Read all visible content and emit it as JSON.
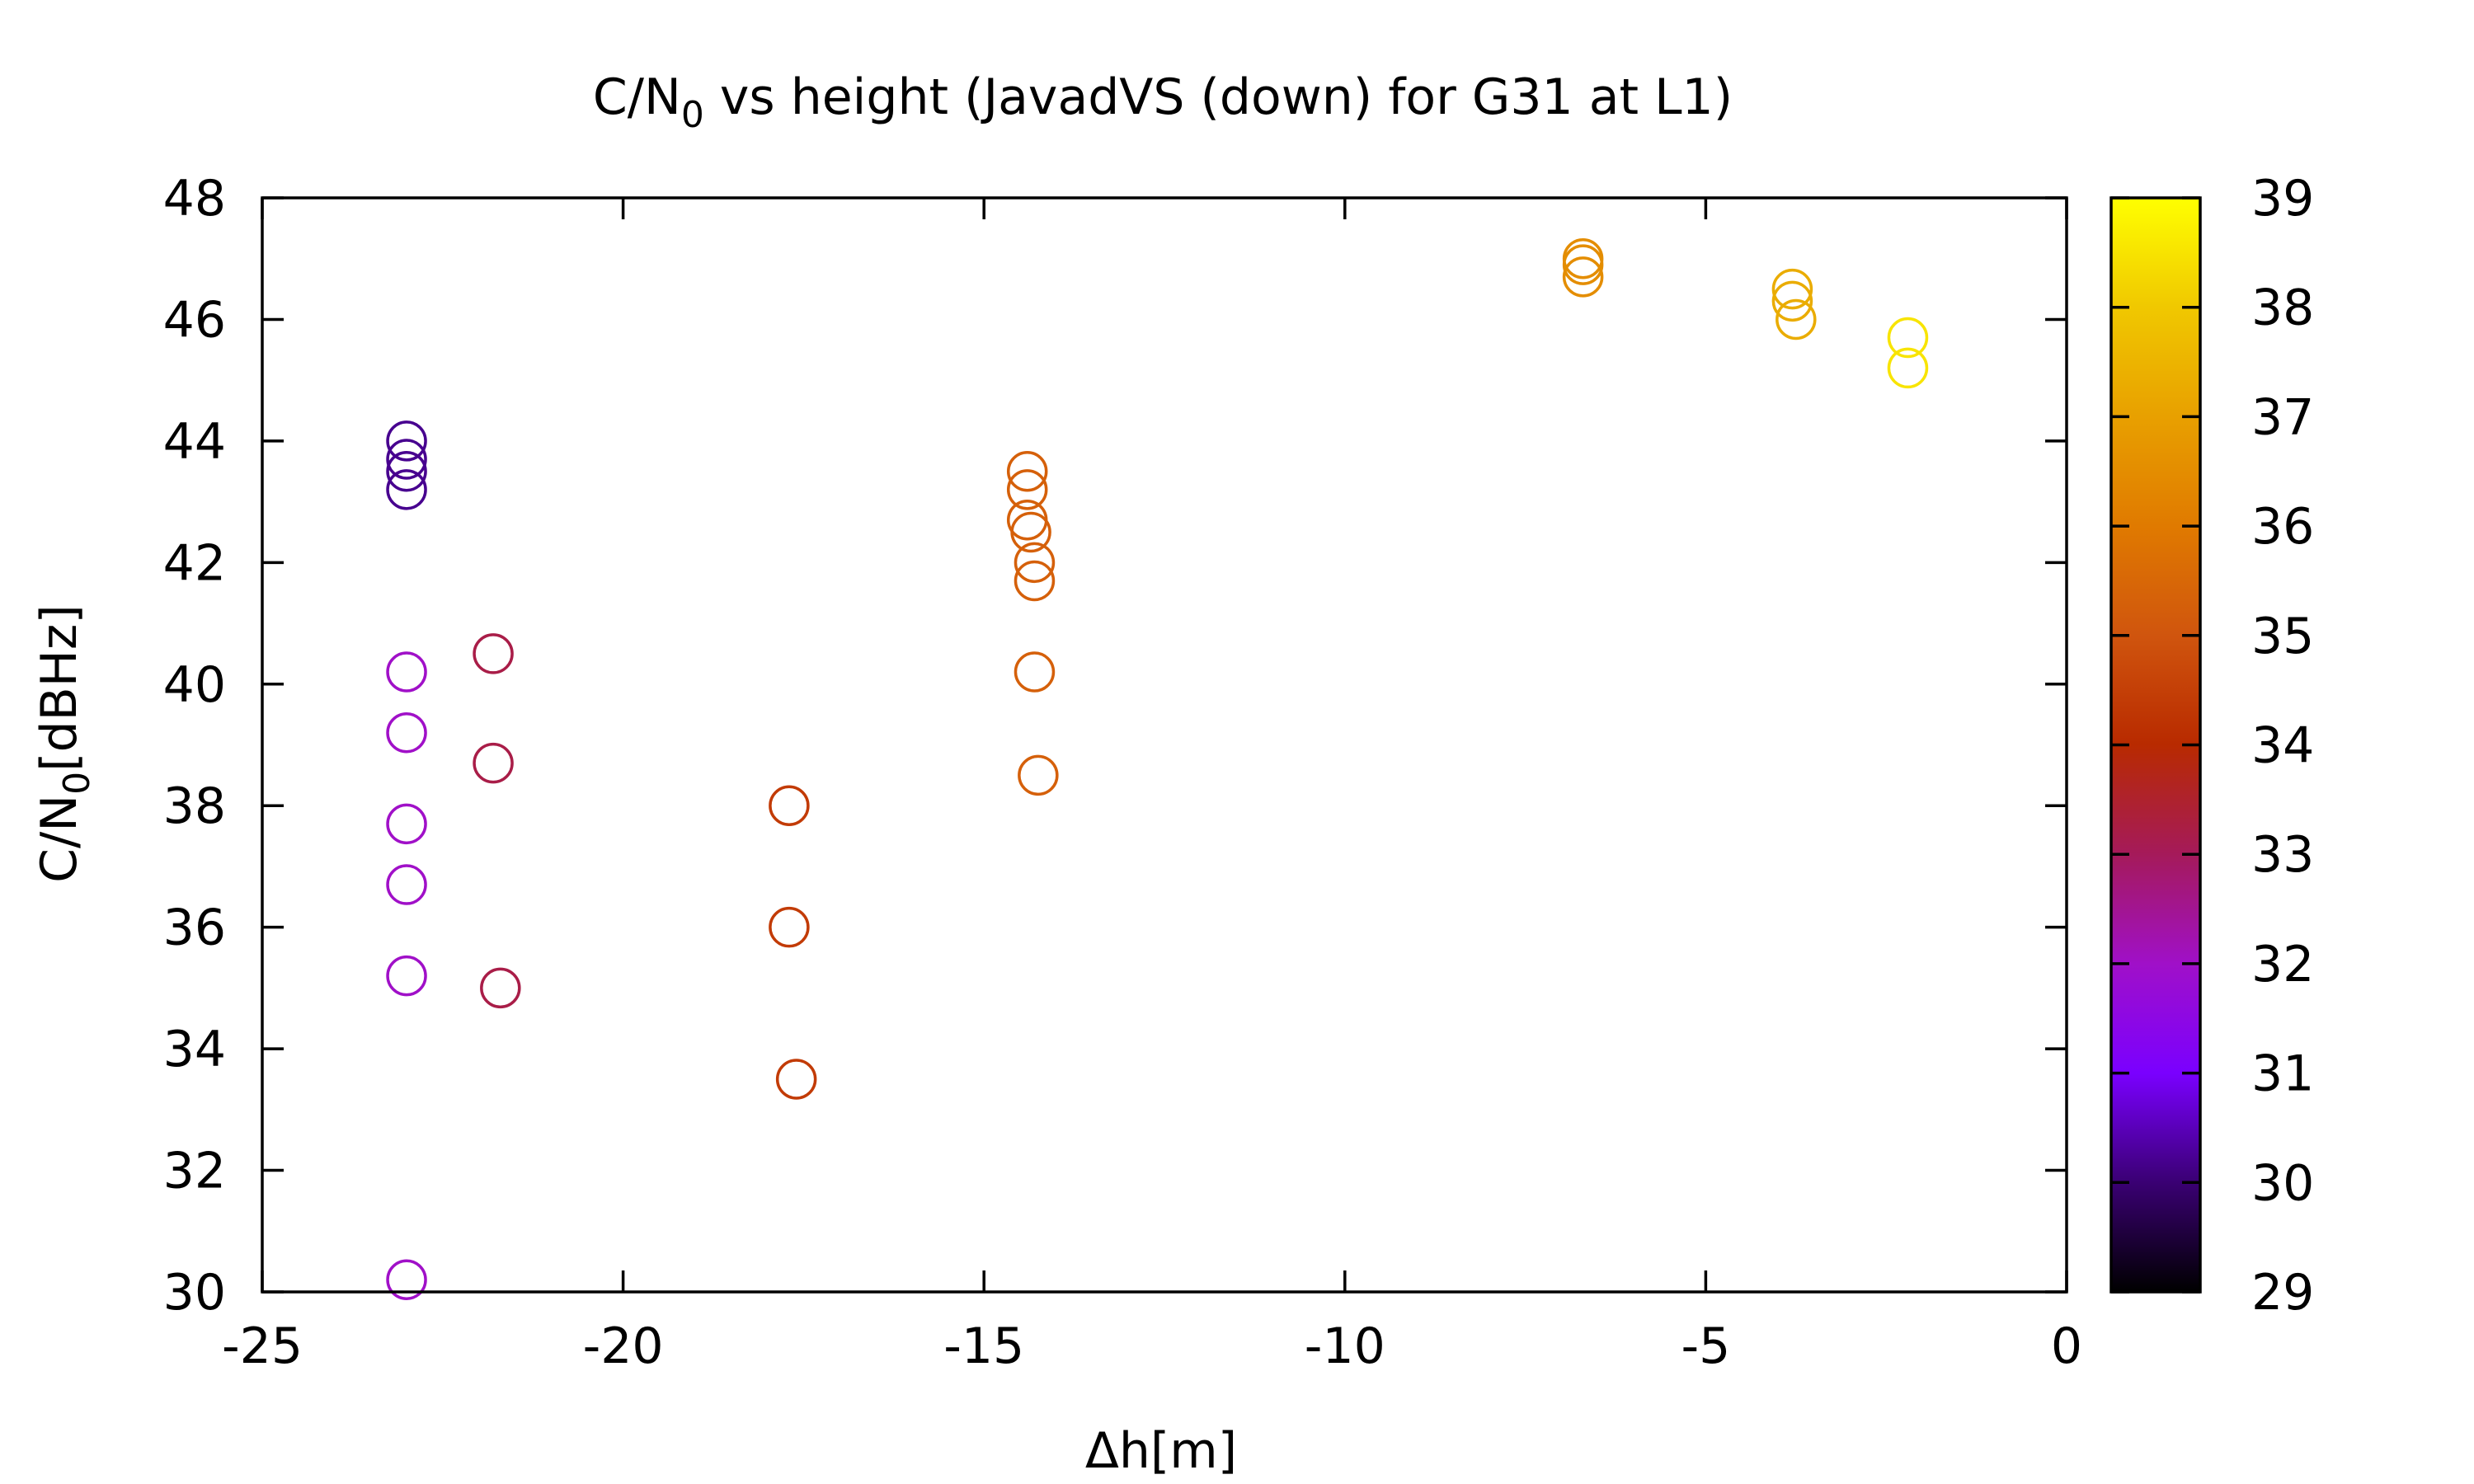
{
  "chart_data": {
    "type": "scatter",
    "title": {
      "main": "C/N",
      "sub": "0",
      "rest": " vs height (JavadVS (down) for G31 at L1)"
    },
    "xlabel": "Δh[m]",
    "ylabel": {
      "main": "C/N",
      "sub": "0",
      "rest": "[dBHz]"
    },
    "xlim": [
      -25,
      0
    ],
    "ylim": [
      30,
      48
    ],
    "xticks": [
      "-25",
      "-20",
      "-15",
      "-10",
      "-5",
      "0"
    ],
    "yticks": [
      "30",
      "32",
      "34",
      "36",
      "38",
      "40",
      "42",
      "44",
      "46",
      "48"
    ],
    "colorbar": {
      "range": [
        29,
        39
      ],
      "ticks": [
        "29",
        "30",
        "31",
        "32",
        "33",
        "34",
        "35",
        "36",
        "37",
        "38",
        "39"
      ],
      "palette": [
        "#000000",
        "#3a0073",
        "#7a00ff",
        "#a010c8",
        "#a51a5a",
        "#b82a00",
        "#d0550e",
        "#e07a00",
        "#e8a000",
        "#f0c800",
        "#ffff00"
      ]
    },
    "marker": "open-circle",
    "points": [
      {
        "x": -23.0,
        "y": 44.0,
        "c": 30.2
      },
      {
        "x": -23.0,
        "y": 43.7,
        "c": 30.2
      },
      {
        "x": -23.0,
        "y": 43.5,
        "c": 30.2
      },
      {
        "x": -23.0,
        "y": 43.2,
        "c": 30.2
      },
      {
        "x": -23.0,
        "y": 40.2,
        "c": 32.0
      },
      {
        "x": -23.0,
        "y": 39.2,
        "c": 32.0
      },
      {
        "x": -23.0,
        "y": 37.7,
        "c": 32.0
      },
      {
        "x": -23.0,
        "y": 36.7,
        "c": 32.0
      },
      {
        "x": -23.0,
        "y": 35.2,
        "c": 32.0
      },
      {
        "x": -23.0,
        "y": 30.2,
        "c": 32.0
      },
      {
        "x": -21.8,
        "y": 40.5,
        "c": 33.2
      },
      {
        "x": -21.8,
        "y": 38.7,
        "c": 33.2
      },
      {
        "x": -21.7,
        "y": 35.0,
        "c": 33.2
      },
      {
        "x": -17.7,
        "y": 38.0,
        "c": 34.4
      },
      {
        "x": -17.7,
        "y": 36.0,
        "c": 34.4
      },
      {
        "x": -17.6,
        "y": 33.5,
        "c": 34.4
      },
      {
        "x": -14.4,
        "y": 43.5,
        "c": 35.3
      },
      {
        "x": -14.4,
        "y": 43.2,
        "c": 35.3
      },
      {
        "x": -14.4,
        "y": 42.7,
        "c": 35.3
      },
      {
        "x": -14.35,
        "y": 42.5,
        "c": 35.3
      },
      {
        "x": -14.3,
        "y": 42.0,
        "c": 35.3
      },
      {
        "x": -14.3,
        "y": 41.7,
        "c": 35.3
      },
      {
        "x": -14.3,
        "y": 40.2,
        "c": 35.3
      },
      {
        "x": -14.25,
        "y": 38.5,
        "c": 35.3
      },
      {
        "x": -6.7,
        "y": 47.0,
        "c": 36.5
      },
      {
        "x": -6.7,
        "y": 46.9,
        "c": 36.5
      },
      {
        "x": -6.7,
        "y": 46.7,
        "c": 36.5
      },
      {
        "x": -3.8,
        "y": 46.5,
        "c": 37.3
      },
      {
        "x": -3.8,
        "y": 46.3,
        "c": 37.3
      },
      {
        "x": -3.75,
        "y": 46.0,
        "c": 37.3
      },
      {
        "x": -2.2,
        "y": 45.7,
        "c": 38.5
      },
      {
        "x": -2.2,
        "y": 45.2,
        "c": 38.5
      }
    ]
  }
}
